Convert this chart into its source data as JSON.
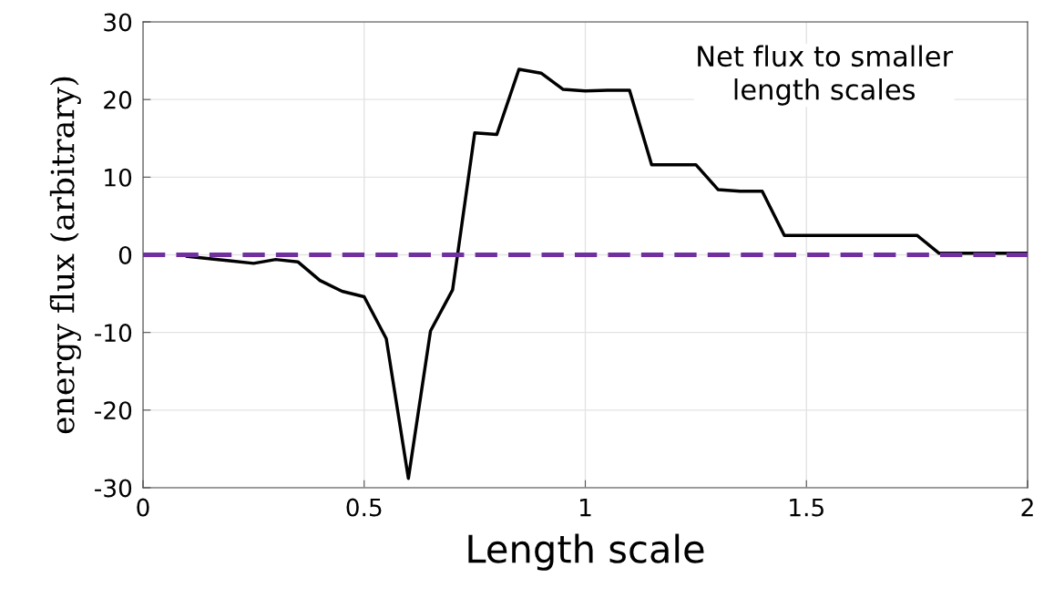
{
  "chart_data": {
    "type": "line",
    "xlabel": "Length scale",
    "ylabel": "energy flux (arbitrary)",
    "annotations": [
      "Net flux to smaller\nlength scales"
    ],
    "x": [
      0.1,
      0.15,
      0.2,
      0.25,
      0.3,
      0.35,
      0.4,
      0.45,
      0.5,
      0.55,
      0.6,
      0.65,
      0.7,
      0.75,
      0.8,
      0.85,
      0.9,
      0.95,
      1.0,
      1.05,
      1.1,
      1.15,
      1.2,
      1.25,
      1.3,
      1.35,
      1.4,
      1.45,
      1.5,
      1.55,
      1.6,
      1.65,
      1.7,
      1.75,
      1.8,
      1.85,
      1.9,
      1.95,
      2.0
    ],
    "series": [
      {
        "color": "#000000",
        "values": [
          -0.2,
          -0.5,
          -0.8,
          -1.1,
          -0.6,
          -0.9,
          -3.3,
          -4.7,
          -5.4,
          -10.8,
          -28.8,
          -9.8,
          -4.5,
          15.7,
          15.5,
          23.9,
          23.4,
          21.3,
          21.1,
          21.2,
          21.2,
          11.6,
          11.6,
          11.6,
          8.4,
          8.2,
          8.2,
          2.5,
          2.5,
          2.5,
          2.5,
          2.5,
          2.5,
          2.5,
          0.2,
          0.2,
          0.2,
          0.2,
          0.2
        ]
      }
    ],
    "ref_lines": [
      {
        "axis": "y",
        "value": 0,
        "color": "#7030a0",
        "line_style": "dashed"
      }
    ],
    "xlim": [
      0,
      2
    ],
    "ylim": [
      -30,
      30
    ],
    "xticks": [
      0,
      0.5,
      1,
      1.5,
      2
    ],
    "yticks": [
      -30,
      -20,
      -10,
      0,
      10,
      20,
      30
    ],
    "grid": true,
    "marker": "none",
    "line_style": "solid"
  }
}
